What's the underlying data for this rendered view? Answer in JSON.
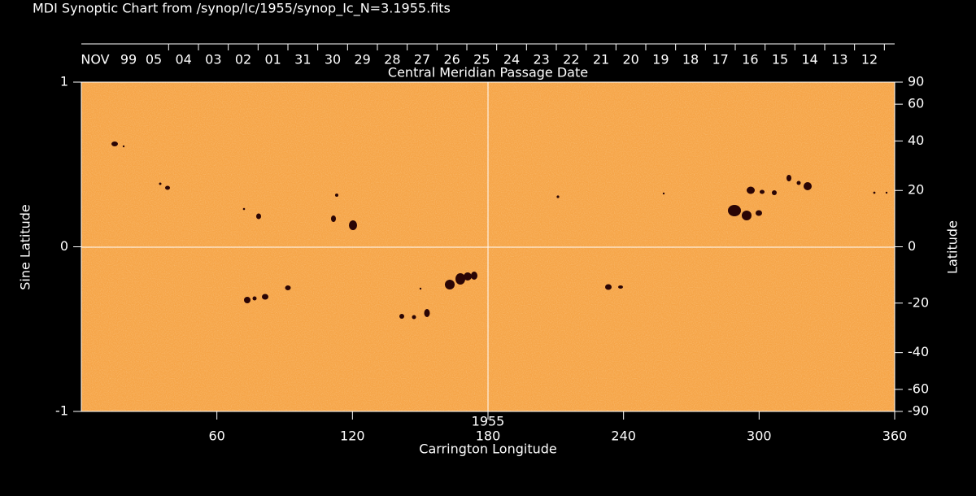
{
  "chart_data": {
    "type": "synoptic-map",
    "title": "MDI Synoptic Chart from /synop/Ic/1955/synop_Ic_N=3.1955.fits",
    "top_axis": {
      "prefix": [
        "NOV",
        "99"
      ],
      "dates": [
        "05",
        "04",
        "03",
        "02",
        "01",
        "31",
        "30",
        "29",
        "28",
        "27",
        "26",
        "25",
        "24",
        "23",
        "22",
        "21",
        "20",
        "19",
        "18",
        "17",
        "16",
        "15",
        "14",
        "13",
        "12"
      ],
      "label": "Central Meridian Passage Date"
    },
    "x_label": "Carrington Longitude",
    "rotation_label": "1955",
    "y_label": "Sine Latitude",
    "y2_label": "Latitude",
    "xlim": [
      0,
      360
    ],
    "xticks": [
      60,
      120,
      180,
      240,
      300,
      360
    ],
    "ylim": [
      -1,
      1
    ],
    "yticks": [
      1,
      0,
      -1
    ],
    "y2scale": "sine",
    "y2ticks": [
      90,
      60,
      40,
      20,
      0,
      -20,
      -40,
      -60,
      -90
    ],
    "color": "#f6a548"
  }
}
